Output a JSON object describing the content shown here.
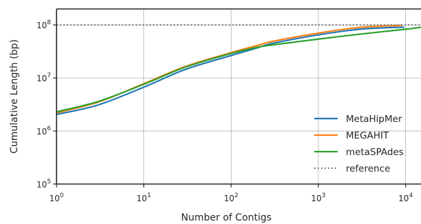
{
  "chart_data": {
    "type": "line",
    "xlabel": "Number of Contigs",
    "ylabel": "Cumulative Length (bp)",
    "xscale": "log",
    "yscale": "log",
    "xlim": [
      1,
      15000
    ],
    "ylim": [
      100000,
      200000000
    ],
    "grid": true,
    "legend_position": "bottom-right",
    "x_ticks": [
      {
        "value": 1,
        "base": "10",
        "exp": "0"
      },
      {
        "value": 10,
        "base": "10",
        "exp": "1"
      },
      {
        "value": 100,
        "base": "10",
        "exp": "2"
      },
      {
        "value": 1000,
        "base": "10",
        "exp": "3"
      },
      {
        "value": 10000,
        "base": "10",
        "exp": "4"
      }
    ],
    "y_ticks": [
      {
        "value": 100000,
        "base": "10",
        "exp": "5"
      },
      {
        "value": 1000000,
        "base": "10",
        "exp": "6"
      },
      {
        "value": 10000000,
        "base": "10",
        "exp": "7"
      },
      {
        "value": 100000000,
        "base": "10",
        "exp": "8"
      }
    ],
    "series": [
      {
        "name": "MetaHipMer",
        "color": "#1f77b4",
        "style": "solid",
        "x": [
          1,
          3,
          10,
          30,
          100,
          200,
          300,
          1000,
          3000,
          9500
        ],
        "y": [
          2050000,
          3100000,
          6700000,
          14500000,
          26500000,
          37000000,
          45000000,
          65000000,
          83000000,
          91000000
        ]
      },
      {
        "name": "MEGAHIT",
        "color": "#ff7f0e",
        "style": "solid",
        "x": [
          1,
          3,
          10,
          30,
          100,
          200,
          300,
          1000,
          3000,
          9000
        ],
        "y": [
          2200000,
          3500000,
          7800000,
          16500000,
          30000000,
          41000000,
          49000000,
          70000000,
          90000000,
          98000000
        ]
      },
      {
        "name": "metaSPAdes",
        "color": "#2ca02c",
        "style": "solid",
        "x": [
          1,
          3,
          10,
          30,
          100,
          200,
          300,
          1000,
          3000,
          10000,
          15000
        ],
        "y": [
          2300000,
          3600000,
          7600000,
          16000000,
          29000000,
          38000000,
          42000000,
          54000000,
          67000000,
          83000000,
          90000000
        ]
      },
      {
        "name": "reference",
        "color": "#808080",
        "style": "dotted",
        "x": [
          1,
          15000
        ],
        "y": [
          100000000,
          100000000
        ]
      }
    ]
  }
}
